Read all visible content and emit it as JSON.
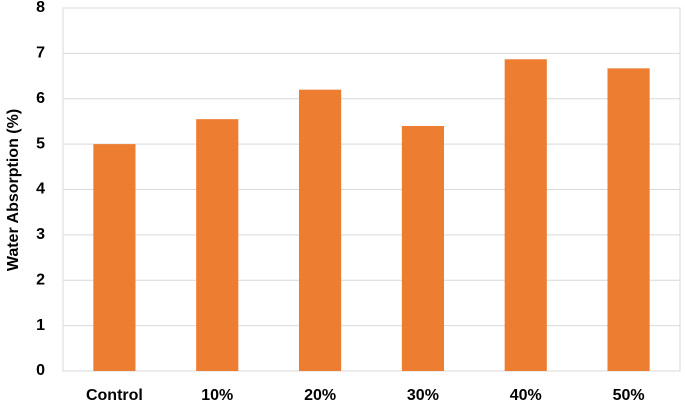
{
  "chart_data": {
    "type": "bar",
    "y_label": "Water Absorption (%)",
    "categories": [
      "Control",
      "10%",
      "20%",
      "30%",
      "40%",
      "50%"
    ],
    "values": [
      5.0,
      5.55,
      6.2,
      5.4,
      6.87,
      6.67
    ],
    "color": "#ed7d31",
    "ylim": [
      0,
      8
    ],
    "yticks": [
      0,
      1,
      2,
      3,
      4,
      5,
      6,
      7,
      8
    ],
    "grid": true
  }
}
